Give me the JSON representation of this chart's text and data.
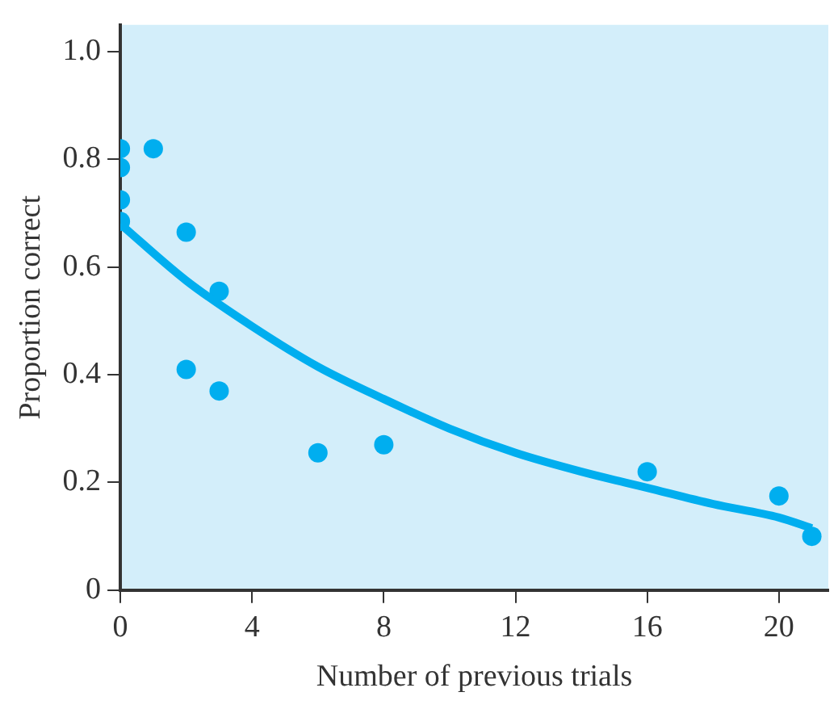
{
  "chart_data": {
    "type": "scatter",
    "xlabel": "Number of previous trials",
    "ylabel": "Proportion correct",
    "xlim": [
      0,
      21.5
    ],
    "xticks": [
      0,
      4,
      8,
      12,
      16,
      20
    ],
    "ylim": [
      0,
      1.05
    ],
    "yticks": [
      0,
      {
        "value": 0.2,
        "label": "0.2"
      },
      {
        "value": 0.4,
        "label": "0.4"
      },
      {
        "value": 0.6,
        "label": "0.6"
      },
      {
        "value": 0.8,
        "label": "0.8"
      },
      {
        "value": 1,
        "label": "1.0"
      }
    ],
    "grid": false,
    "legend": false,
    "marker": "circle",
    "series": [
      {
        "color": "#00aeef",
        "x": [
          0,
          0,
          0,
          0,
          1,
          2,
          2,
          3,
          3,
          6,
          8,
          16,
          20,
          21
        ],
        "values": [
          0.82,
          0.785,
          0.725,
          0.685,
          0.82,
          0.665,
          0.41,
          0.555,
          0.37,
          0.255,
          0.27,
          0.22,
          0.175,
          0.1
        ]
      },
      {
        "type": "line",
        "color": "#00aeef",
        "marker": "none",
        "line_style": "solid",
        "x": [
          0,
          2,
          4,
          6,
          8,
          10,
          12,
          14,
          16,
          18,
          20,
          21
        ],
        "values": [
          0.68,
          0.575,
          0.49,
          0.415,
          0.355,
          0.3,
          0.255,
          0.22,
          0.19,
          0.16,
          0.135,
          0.115
        ]
      }
    ]
  }
}
